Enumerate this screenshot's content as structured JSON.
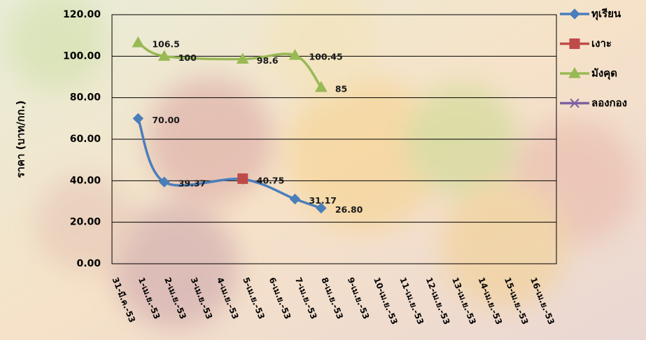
{
  "chart_data": {
    "type": "line",
    "y_label": "ราคา  (บาท/กก.)",
    "categories": [
      "31-มี.ค.-53",
      "1-เม.ย.-53",
      "2-เม.ย.-53",
      "3-เม.ย.-53",
      "4-เม.ย.-53",
      "5-เม.ย.-53",
      "6-เม.ย.-53",
      "7-เม.ย.-53",
      "8-เม.ย.-53",
      "9-เม.ย.-53",
      "10-เม.ย.-53",
      "11-เม.ย.-53",
      "12-เม.ย.-53",
      "13-เม.ย.-53",
      "14-เม.ย.-53",
      "15-เม.ย.-53",
      "16-เม.ย.-53"
    ],
    "series": [
      {
        "name": "ทุเรียน",
        "color": "#4a7ebb",
        "marker": "diamond",
        "x": [
          "1-เม.ย.-53",
          "2-เม.ย.-53",
          "5-เม.ย.-53",
          "7-เม.ย.-53",
          "8-เม.ย.-53"
        ],
        "values": [
          70,
          39.37,
          40.75,
          31.17,
          26.8
        ],
        "value_labels": [
          "70.00",
          "39.37",
          "40.75",
          "31.17",
          "26.80"
        ]
      },
      {
        "name": "เงาะ",
        "color": "#be4b48",
        "marker": "square",
        "x": [
          "5-เม.ย.-53"
        ],
        "values": [
          41
        ]
      },
      {
        "name": "มังคุด",
        "color": "#98b954",
        "marker": "triangle",
        "x": [
          "1-เม.ย.-53",
          "2-เม.ย.-53",
          "5-เม.ย.-53",
          "7-เม.ย.-53",
          "8-เม.ย.-53"
        ],
        "values": [
          106.5,
          100,
          98.6,
          100.45,
          85
        ]
      },
      {
        "name": "ลองกอง",
        "color": "#7d60a0",
        "marker": "x",
        "x": [],
        "values": []
      }
    ],
    "ylim": [
      0,
      120
    ],
    "yticks": [
      {
        "value": 0,
        "label": "0.00"
      },
      {
        "value": 20,
        "label": "20.00"
      },
      {
        "value": 40,
        "label": "40.00"
      },
      {
        "value": 60,
        "label": "60.00"
      },
      {
        "value": 80,
        "label": "80.00"
      },
      {
        "value": 100,
        "label": "100.00"
      },
      {
        "value": 120,
        "label": "120.00"
      }
    ],
    "grid": true,
    "smooth": true,
    "legend": "right"
  }
}
